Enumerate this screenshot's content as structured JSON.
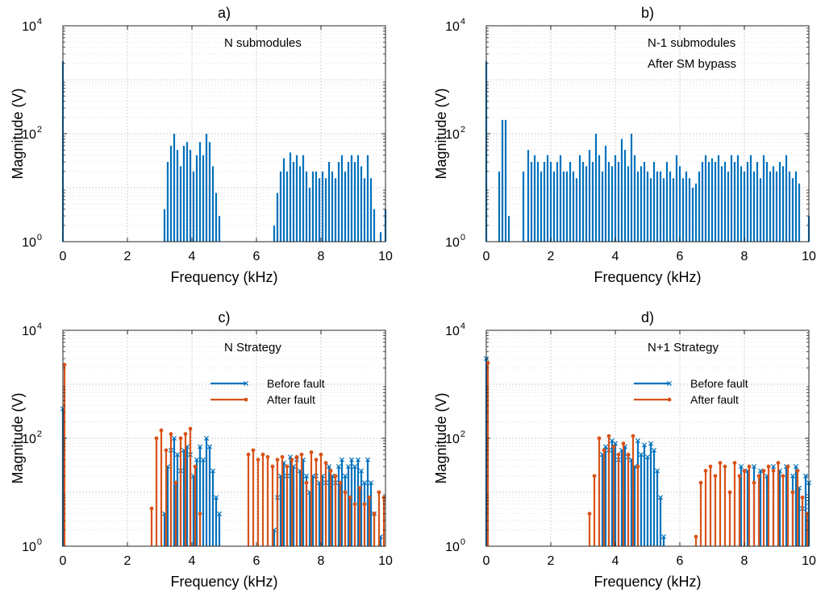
{
  "colors": {
    "before": "#0072bd",
    "after": "#d95319",
    "grid": "#cfcfcf",
    "axis": "#262626"
  },
  "chart_data": [
    {
      "type": "stem",
      "title": "a)",
      "xlabel": "Frequency (kHz)",
      "ylabel": "Magnitude (V)",
      "xlim": [
        0,
        10
      ],
      "ylim": [
        1,
        10000
      ],
      "yscale": "log",
      "grid": true,
      "xticks": [
        "0",
        "2",
        "4",
        "6",
        "8",
        "10"
      ],
      "yticks": [
        {
          "base": "10",
          "exp": "0"
        },
        {
          "base": "10",
          "exp": "2"
        },
        {
          "base": "10",
          "exp": "4"
        }
      ],
      "annotations": [
        "N submodules"
      ],
      "legend": null,
      "series": [
        {
          "color_key": "before",
          "marker": "none",
          "x": [
            0,
            3.15,
            3.25,
            3.35,
            3.45,
            3.55,
            3.65,
            3.75,
            3.85,
            3.95,
            4.05,
            4.15,
            4.25,
            4.35,
            4.45,
            4.55,
            4.65,
            4.75,
            4.85,
            6.55,
            6.65,
            6.75,
            6.85,
            6.95,
            7.05,
            7.15,
            7.25,
            7.35,
            7.45,
            7.55,
            7.65,
            7.75,
            7.85,
            7.95,
            8.05,
            8.15,
            8.25,
            8.35,
            8.45,
            8.55,
            8.65,
            8.75,
            8.85,
            8.95,
            9.05,
            9.15,
            9.25,
            9.35,
            9.45,
            9.55,
            9.65,
            9.85,
            10
          ],
          "y": [
            2200,
            4,
            30,
            60,
            100,
            50,
            25,
            60,
            70,
            50,
            20,
            40,
            70,
            40,
            100,
            70,
            25,
            8,
            3,
            2,
            8,
            20,
            35,
            20,
            45,
            30,
            40,
            25,
            40,
            20,
            10,
            20,
            20,
            15,
            20,
            15,
            30,
            20,
            15,
            30,
            40,
            20,
            30,
            40,
            30,
            40,
            25,
            15,
            40,
            15,
            4,
            1.5,
            4
          ]
        }
      ]
    },
    {
      "type": "stem",
      "title": "b)",
      "xlabel": "Frequency (kHz)",
      "ylabel": "Magnitude (V)",
      "xlim": [
        0,
        10
      ],
      "ylim": [
        1,
        10000
      ],
      "yscale": "log",
      "grid": true,
      "xticks": [
        "0",
        "2",
        "4",
        "6",
        "8",
        "10"
      ],
      "yticks": [
        {
          "base": "10",
          "exp": "0"
        },
        {
          "base": "10",
          "exp": "2"
        },
        {
          "base": "10",
          "exp": "4"
        }
      ],
      "annotations": [
        "N-1 submodules",
        "After SM bypass"
      ],
      "legend": null,
      "series": [
        {
          "color_key": "before",
          "marker": "none",
          "x": [
            0,
            0.4,
            0.5,
            0.6,
            0.7,
            1.15,
            1.3,
            1.4,
            1.5,
            1.6,
            1.7,
            1.8,
            1.9,
            2.0,
            2.1,
            2.2,
            2.3,
            2.4,
            2.5,
            2.6,
            2.7,
            2.8,
            2.9,
            3.0,
            3.1,
            3.2,
            3.3,
            3.4,
            3.5,
            3.6,
            3.7,
            3.8,
            3.9,
            4.0,
            4.1,
            4.2,
            4.3,
            4.4,
            4.5,
            4.6,
            4.7,
            4.8,
            4.9,
            5.0,
            5.1,
            5.2,
            5.3,
            5.4,
            5.5,
            5.6,
            5.7,
            5.8,
            5.9,
            6.0,
            6.1,
            6.2,
            6.3,
            6.4,
            6.5,
            6.6,
            6.7,
            6.8,
            6.9,
            7.0,
            7.1,
            7.2,
            7.3,
            7.4,
            7.5,
            7.6,
            7.7,
            7.8,
            7.9,
            8.0,
            8.1,
            8.2,
            8.3,
            8.4,
            8.5,
            8.6,
            8.7,
            8.8,
            8.9,
            9.0,
            9.1,
            9.2,
            9.3,
            9.4,
            9.5,
            9.6,
            9.7,
            10
          ],
          "y": [
            2200,
            20,
            180,
            180,
            3,
            20,
            50,
            30,
            40,
            30,
            20,
            30,
            40,
            30,
            20,
            30,
            40,
            20,
            20,
            30,
            20,
            15,
            40,
            30,
            25,
            50,
            30,
            100,
            40,
            20,
            60,
            30,
            25,
            40,
            30,
            80,
            50,
            25,
            100,
            40,
            20,
            25,
            30,
            20,
            15,
            30,
            20,
            20,
            15,
            30,
            20,
            15,
            40,
            25,
            15,
            20,
            15,
            10,
            12,
            20,
            30,
            40,
            30,
            35,
            30,
            40,
            25,
            30,
            20,
            40,
            30,
            40,
            25,
            20,
            30,
            40,
            20,
            30,
            15,
            40,
            30,
            20,
            25,
            20,
            30,
            25,
            40,
            20,
            15,
            20,
            12,
            3
          ]
        }
      ]
    },
    {
      "type": "stem",
      "title": "c)",
      "xlabel": "Frequency (kHz)",
      "ylabel": "Magnitude (V)",
      "xlim": [
        0,
        10
      ],
      "ylim": [
        1,
        10000
      ],
      "yscale": "log",
      "grid": true,
      "xticks": [
        "0",
        "2",
        "4",
        "6",
        "8",
        "10"
      ],
      "yticks": [
        {
          "base": "10",
          "exp": "0"
        },
        {
          "base": "10",
          "exp": "2"
        },
        {
          "base": "10",
          "exp": "4"
        }
      ],
      "annotations": [
        "N Strategy"
      ],
      "legend": {
        "placement": "upper-right",
        "entries": [
          "Before fault",
          "After fault"
        ]
      },
      "series": [
        {
          "name": "Before fault",
          "color_key": "before",
          "marker": "x",
          "x": [
            0,
            3.15,
            3.25,
            3.35,
            3.45,
            3.55,
            3.65,
            3.75,
            3.85,
            3.95,
            4.05,
            4.15,
            4.25,
            4.35,
            4.45,
            4.55,
            4.65,
            4.75,
            4.85,
            6.55,
            6.65,
            6.75,
            6.85,
            6.95,
            7.05,
            7.15,
            7.25,
            7.35,
            7.45,
            7.55,
            7.65,
            7.75,
            7.85,
            7.95,
            8.05,
            8.15,
            8.25,
            8.35,
            8.45,
            8.55,
            8.65,
            8.75,
            8.85,
            8.95,
            9.05,
            9.15,
            9.25,
            9.35,
            9.45,
            9.55,
            9.65,
            9.85
          ],
          "y": [
            350,
            4,
            30,
            60,
            100,
            50,
            25,
            60,
            70,
            50,
            20,
            40,
            70,
            40,
            100,
            70,
            25,
            8,
            4,
            2,
            8,
            20,
            35,
            20,
            45,
            30,
            40,
            25,
            40,
            20,
            10,
            20,
            20,
            15,
            20,
            15,
            30,
            20,
            15,
            30,
            40,
            20,
            30,
            40,
            30,
            40,
            25,
            15,
            40,
            15,
            4,
            1.5
          ]
        },
        {
          "name": "After fault",
          "color_key": "after",
          "marker": "dot",
          "x": [
            0.05,
            2.75,
            2.9,
            3.05,
            3.2,
            3.35,
            3.5,
            3.65,
            3.8,
            3.95,
            4.1,
            4.25,
            5.75,
            5.9,
            6.05,
            6.2,
            6.35,
            6.5,
            6.65,
            6.8,
            6.95,
            7.1,
            7.25,
            7.4,
            7.55,
            7.7,
            7.85,
            8.0,
            8.15,
            8.3,
            8.45,
            8.6,
            8.75,
            8.9,
            9.05,
            9.2,
            9.35,
            9.5,
            9.65,
            9.8,
            9.95
          ],
          "y": [
            2300,
            5,
            100,
            140,
            60,
            120,
            15,
            100,
            120,
            150,
            30,
            4,
            50,
            60,
            40,
            50,
            45,
            30,
            40,
            45,
            30,
            40,
            45,
            50,
            15,
            55,
            40,
            50,
            35,
            25,
            20,
            15,
            10,
            8,
            6,
            12,
            6,
            8,
            4,
            10,
            8
          ]
        }
      ]
    },
    {
      "type": "stem",
      "title": "d)",
      "xlabel": "Frequency (kHz)",
      "ylabel": "Magnitude (V)",
      "xlim": [
        0,
        10
      ],
      "ylim": [
        1,
        10000
      ],
      "yscale": "log",
      "grid": true,
      "xticks": [
        "0",
        "2",
        "4",
        "6",
        "8",
        "10"
      ],
      "yticks": [
        {
          "base": "10",
          "exp": "0"
        },
        {
          "base": "10",
          "exp": "2"
        },
        {
          "base": "10",
          "exp": "4"
        }
      ],
      "annotations": [
        "N+1 Strategy"
      ],
      "legend": {
        "placement": "upper-right",
        "entries": [
          "Before fault",
          "After fault"
        ]
      },
      "series": [
        {
          "name": "Before fault",
          "color_key": "before",
          "marker": "x",
          "x": [
            0,
            3.6,
            3.7,
            3.8,
            3.9,
            4.0,
            4.1,
            4.2,
            4.3,
            4.4,
            4.5,
            4.6,
            4.7,
            4.8,
            4.9,
            5.0,
            5.1,
            5.2,
            5.3,
            5.4,
            5.5,
            7.9,
            8.1,
            8.3,
            8.5,
            8.7,
            8.9,
            9.1,
            9.3,
            9.5,
            9.6,
            9.7,
            9.8,
            9.9,
            10
          ],
          "y": [
            3000,
            50,
            70,
            60,
            90,
            80,
            40,
            60,
            70,
            45,
            40,
            30,
            90,
            50,
            75,
            45,
            80,
            60,
            25,
            8,
            1.5,
            30,
            25,
            30,
            25,
            20,
            30,
            25,
            30,
            20,
            30,
            12,
            5,
            20,
            15
          ]
        },
        {
          "name": "After fault",
          "color_key": "after",
          "marker": "dot",
          "x": [
            0.05,
            3.2,
            3.35,
            3.5,
            3.65,
            3.8,
            3.95,
            4.1,
            4.25,
            4.4,
            4.55,
            4.7,
            6.5,
            6.65,
            6.8,
            6.95,
            7.1,
            7.25,
            7.4,
            7.55,
            7.7,
            7.85,
            8.0,
            8.15,
            8.3,
            8.45,
            8.6,
            8.75,
            8.9,
            9.05,
            9.2,
            9.35,
            9.5,
            9.65,
            9.8,
            9.95
          ],
          "y": [
            2500,
            4,
            20,
            100,
            60,
            110,
            70,
            50,
            80,
            50,
            110,
            30,
            1.5,
            15,
            25,
            30,
            20,
            35,
            30,
            10,
            35,
            20,
            25,
            30,
            15,
            20,
            25,
            30,
            25,
            35,
            20,
            30,
            10,
            25,
            8,
            4
          ]
        }
      ]
    }
  ]
}
